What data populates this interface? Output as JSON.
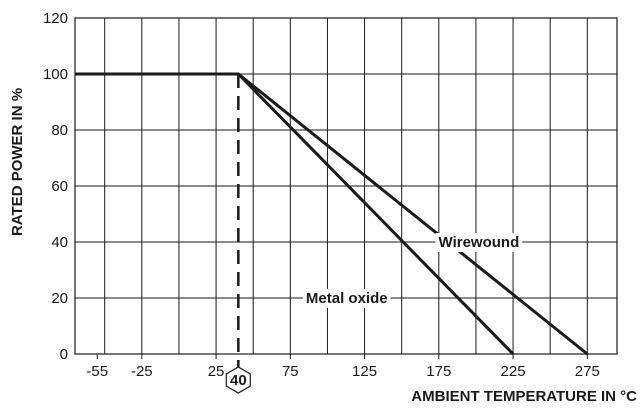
{
  "chart_data": {
    "type": "line",
    "title": "",
    "xlabel": "AMBIENT TEMPERATURE IN °C",
    "ylabel": "RATED POWER IN %",
    "xlim": [
      -70,
      295
    ],
    "ylim": [
      0,
      120
    ],
    "x_ticks": [
      -55,
      -25,
      25,
      75,
      125,
      175,
      225,
      275
    ],
    "x_tick_labels": [
      "-55",
      "-25",
      "25",
      "75",
      "125",
      "175",
      "225",
      "275"
    ],
    "y_ticks": [
      0,
      20,
      40,
      60,
      80,
      100,
      120
    ],
    "y_tick_labels": [
      "0",
      "20",
      "40",
      "60",
      "80",
      "100",
      "120"
    ],
    "grid": true,
    "legend": "none",
    "series": [
      {
        "name": "Wirewound",
        "points": [
          [
            -70,
            100
          ],
          [
            40,
            100
          ],
          [
            275,
            0
          ]
        ]
      },
      {
        "name": "Metal oxide",
        "points": [
          [
            -70,
            100
          ],
          [
            40,
            100
          ],
          [
            225,
            0
          ]
        ]
      }
    ],
    "annotations": [
      {
        "type": "vertical-dashed-line",
        "x": 40,
        "label": "40"
      }
    ],
    "colors": {
      "line": "#1a1a1a",
      "grid": "#1a1a1a",
      "background": "#ffffff"
    }
  }
}
